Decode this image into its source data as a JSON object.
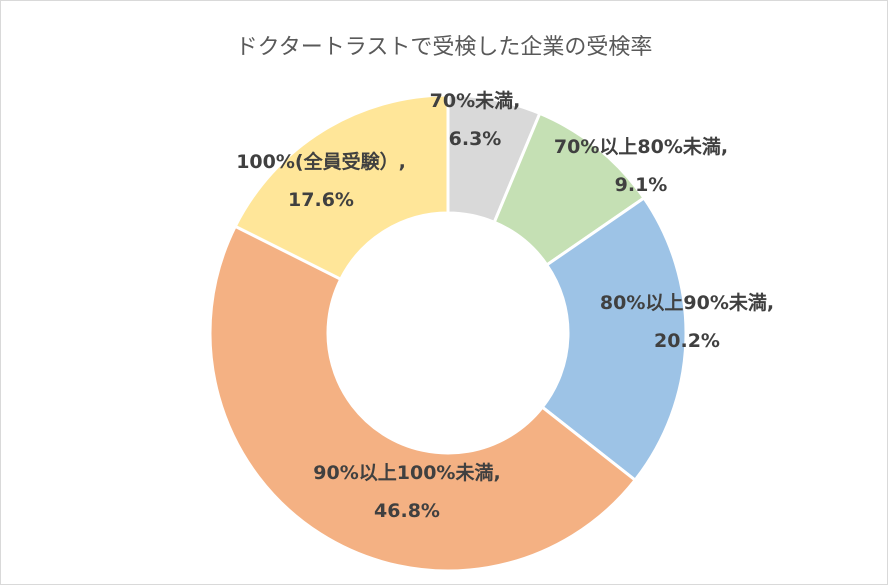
{
  "chart_data": {
    "type": "pie",
    "title": "ドクタートラストで受検した企業の受検率",
    "slices": [
      {
        "name": "70%未満",
        "label_line1": "70%未満,",
        "label_line2": "6.3%",
        "value": 6.3,
        "color": "#d9d9d9"
      },
      {
        "name": "70%以上80%未満",
        "label_line1": "70%以上80%未満,",
        "label_line2": "9.1%",
        "value": 9.1,
        "color": "#c5e0b4"
      },
      {
        "name": "80%以上90%未満",
        "label_line1": "80%以上90%未満,",
        "label_line2": "20.2%",
        "value": 20.2,
        "color": "#9dc3e6"
      },
      {
        "name": "90%以上100%未満",
        "label_line1": "90%以上100%未満,",
        "label_line2": "46.8%",
        "value": 46.8,
        "color": "#f4b183"
      },
      {
        "name": "100%(全員受験)",
        "label_line1": "100%(全員受験）,",
        "label_line2": "17.6%",
        "value": 17.6,
        "color": "#ffe699"
      }
    ]
  }
}
